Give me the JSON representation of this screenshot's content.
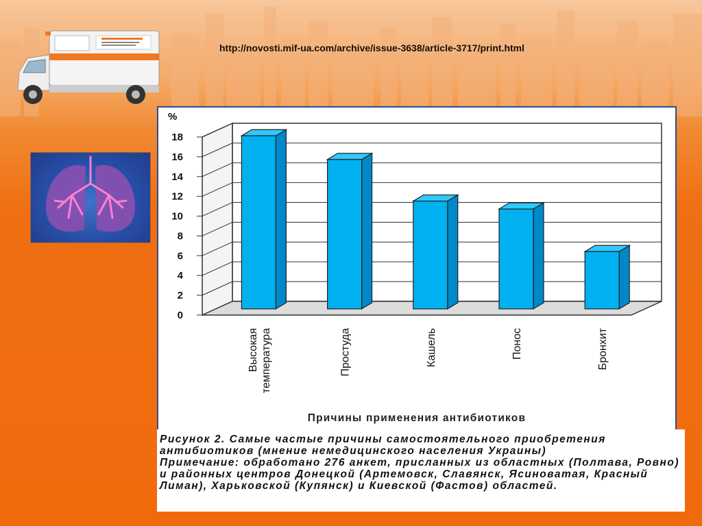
{
  "header": {
    "url": "http://novosti.mif-ua.com/archive/issue-3638/article-3717/print.html"
  },
  "images": {
    "ambulance": "ambulance-illustration",
    "lungs": "lungs-illustration"
  },
  "colors": {
    "bar_front": "#00b0f0",
    "bar_side": "#0088c8",
    "bar_top": "#30c8ff",
    "background": "#f06a0c",
    "frame": "#2c4d8f"
  },
  "chart_data": {
    "type": "bar",
    "title": "Причины применения антибиотиков",
    "ylabel": "%",
    "xlabel": "",
    "categories": [
      "Высокая температура",
      "Простуда",
      "Кашель",
      "Понос",
      "Бронхит"
    ],
    "category_lines": [
      [
        "Высокая",
        "температура"
      ],
      [
        "Простуда"
      ],
      [
        "Кашель"
      ],
      [
        "Понос"
      ],
      [
        "Бронхит"
      ]
    ],
    "values": [
      17.5,
      15.1,
      10.9,
      10.1,
      5.8
    ],
    "ylim": [
      0,
      18
    ],
    "yticks": [
      0,
      2,
      4,
      6,
      8,
      10,
      12,
      14,
      16,
      18
    ],
    "grid": true,
    "style": "3d"
  },
  "caption": {
    "text": "Рисунок 2. Самые частые причины самостоятельного приобретения антибиотиков (мнение немедицинского населения Украины)\nПримечание: обработано 276 анкет, присланных из областных (Полтава, Ровно) и районных центров Донецкой (Артемовск, Славянск, Ясиноватая, Красный Лиман), Харьковской (Купянск) и Киевской (Фастов) областей."
  }
}
